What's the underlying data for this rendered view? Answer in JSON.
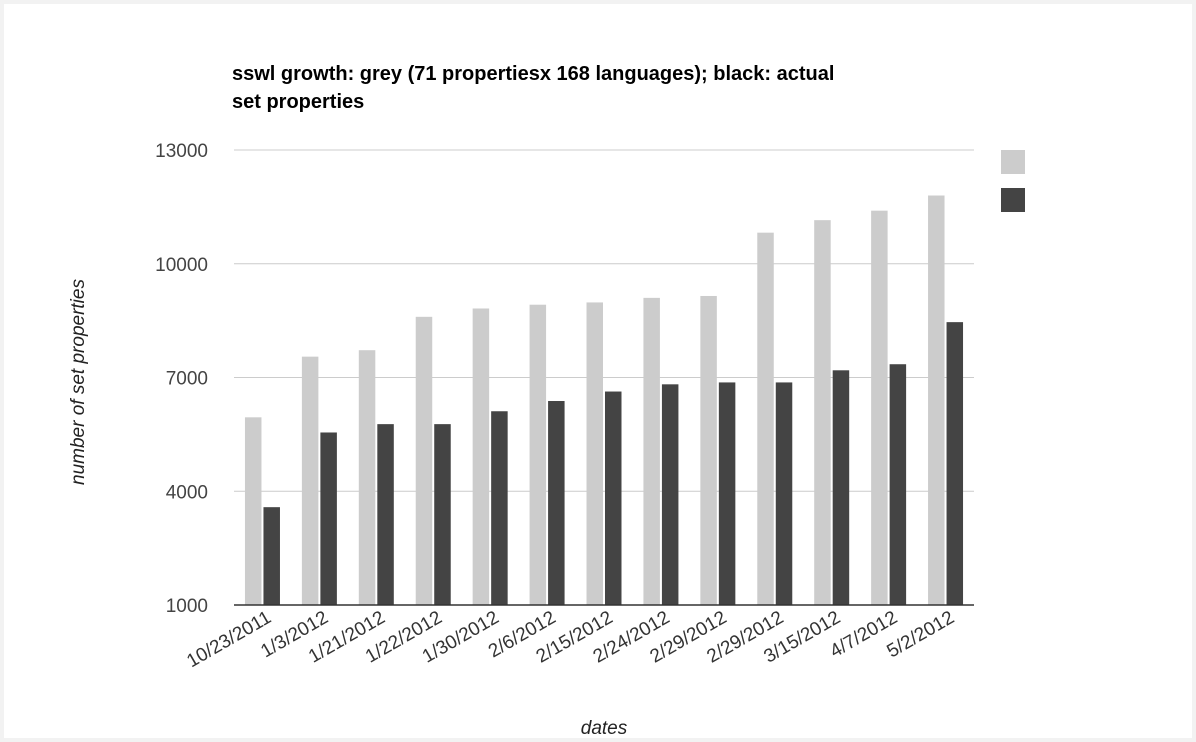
{
  "chart_data": {
    "type": "bar",
    "title": "sswl growth: grey (71 propertiesx 168 languages); black: actual set properties",
    "title_lines": [
      "sswl growth: grey (71 propertiesx 168 languages); black: actual",
      "set properties"
    ],
    "xlabel": "dates",
    "ylabel": "number of set properties",
    "categories": [
      "10/23/2011",
      "1/3/2012",
      "1/21/2012",
      "1/22/2012",
      "1/30/2012",
      "2/6/2012",
      "2/15/2012",
      "2/24/2012",
      "2/29/2012",
      "2/29/2012",
      "3/15/2012",
      "4/7/2012",
      "5/2/2012"
    ],
    "series": [
      {
        "color": "#cccccc",
        "values": [
          5950,
          7550,
          7720,
          8600,
          8820,
          8920,
          8980,
          9100,
          9150,
          10820,
          11150,
          11400,
          11800
        ]
      },
      {
        "color": "#444444",
        "values": [
          3580,
          5550,
          5770,
          5770,
          6110,
          6380,
          6630,
          6820,
          6870,
          6870,
          7190,
          7350,
          8460
        ]
      }
    ],
    "ylim": [
      1000,
      13000
    ],
    "yticks": [
      1000,
      4000,
      7000,
      10000,
      13000
    ],
    "grid": true,
    "legend_position": "right"
  }
}
